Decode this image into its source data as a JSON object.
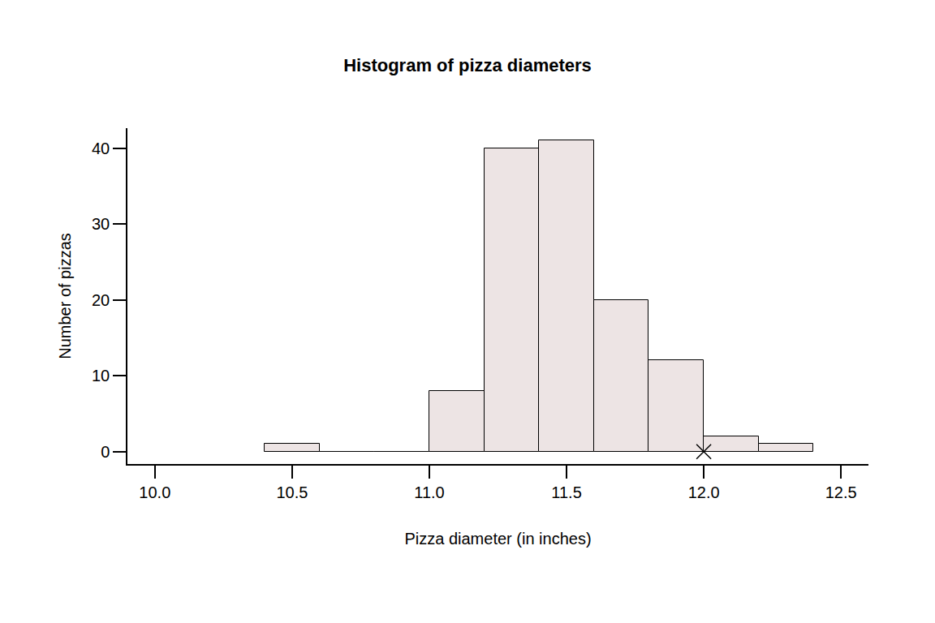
{
  "chart_data": {
    "type": "histogram",
    "title": "Histogram of pizza diameters",
    "x_label": "Pizza diameter (in inches)",
    "y_label": "Number of pizzas",
    "bins": [
      10.4,
      10.6,
      10.8,
      11.0,
      11.2,
      11.4,
      11.6,
      11.8,
      12.0,
      12.2,
      12.4
    ],
    "values": [
      1,
      0,
      0,
      8,
      40,
      41,
      20,
      12,
      2,
      1
    ],
    "color": "#ede4e4",
    "xlim": [
      9.9,
      12.6
    ],
    "xticks": [
      {
        "value": 10,
        "label": "10.0"
      },
      {
        "value": 10.5,
        "label": "10.5"
      },
      {
        "value": 11,
        "label": "11.0"
      },
      {
        "value": 11.5,
        "label": "11.5"
      },
      {
        "value": 12,
        "label": "12.0"
      },
      {
        "value": 12.5,
        "label": "12.5"
      }
    ],
    "ylim": [
      -1.64,
      42.64
    ],
    "yticks": [
      0,
      10,
      20,
      30,
      40
    ],
    "grid": false,
    "reference_point": {
      "x": 12,
      "y": 0,
      "marker": "x"
    }
  }
}
